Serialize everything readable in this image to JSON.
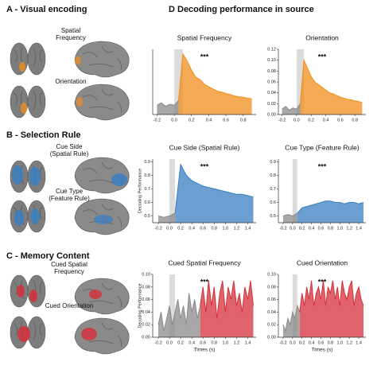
{
  "figure": {
    "panel_a": "A - Visual encoding",
    "panel_b": "B - Selection Rule",
    "panel_c": "C - Memory Content",
    "panel_d": "D Decoding performance in source",
    "brain_labels": [
      "Spatial Frequency",
      "Orientation",
      "Cue Side (Spatial Rule)",
      "Cue Type (Feature Rule)",
      "Cued Spatial Frequency",
      "Cued Orientation"
    ]
  },
  "chart_data": [
    {
      "type": "area",
      "title": "Spatial Frequency",
      "annotation": "***",
      "x": [
        -0.2,
        -0.15,
        -0.1,
        -0.05,
        0,
        0.05,
        0.1,
        0.15,
        0.2,
        0.25,
        0.3,
        0.35,
        0.4,
        0.45,
        0.5,
        0.55,
        0.6,
        0.65,
        0.7,
        0.75,
        0.8,
        0.85,
        0.9
      ],
      "series": [
        {
          "color": "#8a8a8a",
          "values": [
            0.5,
            0.505,
            0.498,
            0.502,
            0.5,
            0.51,
            null,
            null,
            null,
            null,
            null,
            null,
            null,
            null,
            null,
            null,
            null,
            null,
            null,
            null,
            null,
            null,
            null
          ]
        },
        {
          "color": "#f28e1c",
          "values": [
            null,
            null,
            null,
            null,
            null,
            0.51,
            0.61,
            0.595,
            0.575,
            0.56,
            0.555,
            0.545,
            0.54,
            0.535,
            0.53,
            0.528,
            0.525,
            0.523,
            0.52,
            0.518,
            0.517,
            0.515,
            0.514
          ]
        }
      ],
      "span": [
        0,
        0.1
      ],
      "xlim": [
        -0.25,
        0.95
      ],
      "ylim": [
        0.48,
        0.62
      ],
      "xticks": [
        -0.2,
        {
          "value": 0,
          "label": "0.0"
        },
        0.2,
        0.4,
        0.6,
        0.8
      ]
    },
    {
      "type": "area",
      "title": "Orientation",
      "annotation": "***",
      "x": [
        -0.2,
        -0.15,
        -0.1,
        -0.05,
        0,
        0.05,
        0.1,
        0.15,
        0.2,
        0.25,
        0.3,
        0.35,
        0.4,
        0.45,
        0.5,
        0.55,
        0.6,
        0.65,
        0.7,
        0.75,
        0.8,
        0.85,
        0.9
      ],
      "series": [
        {
          "color": "#8a8a8a",
          "values": [
            0.01,
            0.015,
            0.008,
            0.012,
            0.01,
            0.02,
            null,
            null,
            null,
            null,
            null,
            null,
            null,
            null,
            null,
            null,
            null,
            null,
            null,
            null,
            null,
            null,
            null
          ]
        },
        {
          "color": "#f28e1c",
          "values": [
            null,
            null,
            null,
            null,
            null,
            0.02,
            0.1,
            0.085,
            0.07,
            0.06,
            0.055,
            0.05,
            0.045,
            0.04,
            0.038,
            0.035,
            0.032,
            0.03,
            0.028,
            0.027,
            0.025,
            0.024,
            0.022
          ]
        }
      ],
      "span": [
        0,
        0.1
      ],
      "xlim": [
        -0.25,
        0.95
      ],
      "ylim": [
        0,
        0.12
      ],
      "xticks": [
        -0.2,
        {
          "value": 0,
          "label": "0.0"
        },
        0.2,
        0.4,
        0.6,
        0.8
      ],
      "yticks": [
        {
          "value": 0,
          "label": "0.00"
        },
        {
          "value": 0.02,
          "label": "0.02"
        },
        {
          "value": 0.04,
          "label": "0.04"
        },
        {
          "value": 0.06,
          "label": "0.06"
        },
        {
          "value": 0.08,
          "label": "0.08"
        },
        {
          "value": 0.1,
          "label": "0.10"
        },
        {
          "value": 0.12,
          "label": "0.12"
        }
      ]
    },
    {
      "type": "area",
      "title": "Cue Side (Spatial Rule)",
      "annotation": "***",
      "ylabel": "Decoding Performance",
      "x": [
        -0.2,
        -0.1,
        0,
        0.1,
        0.2,
        0.3,
        0.4,
        0.5,
        0.6,
        0.7,
        0.8,
        0.9,
        1,
        1.1,
        1.2,
        1.3,
        1.4,
        1.5
      ],
      "series": [
        {
          "color": "#8a8a8a",
          "values": [
            0.5,
            0.49,
            0.5,
            0.52,
            null,
            null,
            null,
            null,
            null,
            null,
            null,
            null,
            null,
            null,
            null,
            null,
            null,
            null
          ]
        },
        {
          "color": "#3a7fc1",
          "values": [
            null,
            null,
            null,
            0.52,
            0.88,
            0.8,
            0.76,
            0.74,
            0.72,
            0.71,
            0.7,
            0.69,
            0.68,
            0.67,
            0.66,
            0.66,
            0.65,
            0.64
          ]
        }
      ],
      "span": [
        0,
        0.1
      ],
      "xlim": [
        -0.3,
        1.55
      ],
      "ylim": [
        0.45,
        0.92
      ],
      "xticks": [
        -0.2,
        {
          "value": 0,
          "label": "0.0"
        },
        0.2,
        0.4,
        0.6,
        0.8,
        {
          "value": 1,
          "label": "1.0"
        },
        1.2,
        1.4
      ],
      "yticks": [
        0.5,
        0.6,
        0.7,
        0.8,
        0.9
      ]
    },
    {
      "type": "area",
      "title": "Cue Type (Feature Rule)",
      "annotation": "***",
      "x": [
        -0.2,
        -0.1,
        0,
        0.1,
        0.2,
        0.3,
        0.4,
        0.5,
        0.6,
        0.7,
        0.8,
        0.9,
        1,
        1.1,
        1.2,
        1.3,
        1.4,
        1.5
      ],
      "series": [
        {
          "color": "#8a8a8a",
          "values": [
            0.5,
            0.51,
            0.5,
            0.52,
            null,
            null,
            null,
            null,
            null,
            null,
            null,
            null,
            null,
            null,
            null,
            null,
            null,
            null
          ]
        },
        {
          "color": "#3a7fc1",
          "values": [
            null,
            null,
            null,
            0.52,
            0.56,
            0.57,
            0.58,
            0.59,
            0.6,
            0.61,
            0.61,
            0.6,
            0.6,
            0.59,
            0.6,
            0.6,
            0.59,
            0.6
          ]
        }
      ],
      "span": [
        0,
        0.1
      ],
      "xlim": [
        -0.3,
        1.55
      ],
      "ylim": [
        0.45,
        0.92
      ],
      "xticks": [
        -0.2,
        {
          "value": 0,
          "label": "0.0"
        },
        0.2,
        0.4,
        0.6,
        0.8,
        {
          "value": 1,
          "label": "1.0"
        },
        1.2,
        1.4
      ],
      "yticks": [
        0.5,
        0.6,
        0.7,
        0.8,
        0.9
      ]
    },
    {
      "type": "area",
      "title": "Cued Spatial Frequency",
      "annotation": "***",
      "ylabel": "Decoding Performance",
      "xlabel": "Times (s)",
      "x": [
        -0.2,
        -0.15,
        -0.1,
        -0.05,
        0,
        0.05,
        0.1,
        0.15,
        0.2,
        0.25,
        0.3,
        0.35,
        0.4,
        0.45,
        0.5,
        0.55,
        0.6,
        0.65,
        0.7,
        0.75,
        0.8,
        0.85,
        0.9,
        0.95,
        1,
        1.05,
        1.1,
        1.15,
        1.2,
        1.25,
        1.3,
        1.35,
        1.4,
        1.45,
        1.5
      ],
      "series": [
        {
          "color": "#8a8a8a",
          "values": [
            0.02,
            0.04,
            0.01,
            0.03,
            0.05,
            0.02,
            0.04,
            0.06,
            0.03,
            0.05,
            0.02,
            0.07,
            0.04,
            0.06,
            0.03,
            0.05,
            null,
            null,
            null,
            null,
            null,
            null,
            null,
            null,
            null,
            null,
            null,
            null,
            null,
            null,
            null,
            null,
            null,
            null,
            null
          ]
        },
        {
          "color": "#d62f3a",
          "values": [
            null,
            null,
            null,
            null,
            null,
            null,
            null,
            null,
            null,
            null,
            null,
            null,
            null,
            null,
            null,
            0.05,
            0.08,
            0.04,
            0.09,
            0.05,
            0.08,
            0.03,
            0.07,
            0.09,
            0.04,
            0.08,
            0.06,
            0.09,
            0.05,
            0.07,
            0.04,
            0.08,
            0.06,
            0.09,
            0.05
          ]
        }
      ],
      "span": [
        0,
        0.1
      ],
      "xlim": [
        -0.3,
        1.55
      ],
      "ylim": [
        0,
        0.1
      ],
      "xticks": [
        -0.2,
        {
          "value": 0,
          "label": "0.0"
        },
        0.2,
        0.4,
        0.6,
        0.8,
        {
          "value": 1,
          "label": "1.0"
        },
        1.2,
        1.4
      ],
      "yticks": [
        {
          "value": 0,
          "label": "0.00"
        },
        {
          "value": 0.02,
          "label": "0.02"
        },
        {
          "value": 0.04,
          "label": "0.04"
        },
        {
          "value": 0.06,
          "label": "0.06"
        },
        {
          "value": 0.08,
          "label": "0.08"
        },
        {
          "value": 0.1,
          "label": "0.10"
        }
      ]
    },
    {
      "type": "area",
      "title": "Cued Orientation",
      "annotation": "***",
      "xlabel": "Times (s)",
      "x": [
        -0.2,
        -0.15,
        -0.1,
        -0.05,
        0,
        0.05,
        0.1,
        0.15,
        0.2,
        0.25,
        0.3,
        0.35,
        0.4,
        0.45,
        0.5,
        0.55,
        0.6,
        0.65,
        0.7,
        0.75,
        0.8,
        0.85,
        0.9,
        0.95,
        1,
        1.05,
        1.1,
        1.15,
        1.2,
        1.25,
        1.3,
        1.35,
        1.4,
        1.45,
        1.5
      ],
      "series": [
        {
          "color": "#8a8a8a",
          "values": [
            0.02,
            0.01,
            0.03,
            0.02,
            0.04,
            0.03,
            0.05,
            0.04,
            null,
            null,
            null,
            null,
            null,
            null,
            null,
            null,
            null,
            null,
            null,
            null,
            null,
            null,
            null,
            null,
            null,
            null,
            null,
            null,
            null,
            null,
            null,
            null,
            null,
            null,
            null
          ]
        },
        {
          "color": "#d62f3a",
          "values": [
            null,
            null,
            null,
            null,
            null,
            null,
            null,
            0.04,
            0.07,
            0.05,
            0.08,
            0.06,
            0.09,
            0.05,
            0.07,
            0.08,
            0.06,
            0.09,
            0.05,
            0.08,
            0.07,
            0.09,
            0.06,
            0.08,
            0.05,
            0.09,
            0.07,
            0.06,
            0.08,
            0.09,
            0.05,
            0.07,
            0.08,
            0.06,
            0.05
          ]
        }
      ],
      "span": [
        0,
        0.1
      ],
      "xlim": [
        -0.3,
        1.55
      ],
      "ylim": [
        0,
        0.1
      ],
      "xticks": [
        -0.2,
        {
          "value": 0,
          "label": "0.0"
        },
        0.2,
        0.4,
        0.6,
        0.8,
        {
          "value": 1,
          "label": "1.0"
        },
        1.2,
        1.4
      ],
      "yticks": [
        {
          "value": 0,
          "label": "0.00"
        },
        {
          "value": 0.02,
          "label": "0.02"
        },
        {
          "value": 0.04,
          "label": "0.04"
        },
        {
          "value": 0.06,
          "label": "0.06"
        },
        {
          "value": 0.08,
          "label": "0.08"
        },
        {
          "value": 0.1,
          "label": "0.10"
        }
      ]
    }
  ]
}
